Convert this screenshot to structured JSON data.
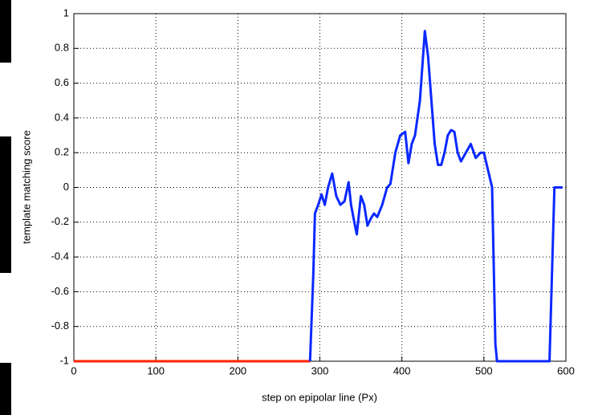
{
  "chart_data": {
    "type": "line",
    "xlabel": "step on epipolar line (Px)",
    "ylabel": "template matching score",
    "xlim": [
      0,
      600
    ],
    "xticks": [
      0,
      100,
      200,
      300,
      400,
      500,
      600
    ],
    "ylim": [
      -1,
      1
    ],
    "yticks": [
      -1,
      -0.8,
      -0.6,
      -0.4,
      -0.2,
      0,
      0.2,
      0.4,
      0.6,
      0.8,
      1
    ],
    "grid": true,
    "series": [
      {
        "color": "#ff2200",
        "x": [
          0,
          288
        ],
        "values": [
          -1,
          -1
        ]
      },
      {
        "color": "#0a28ff",
        "x": [
          288,
          292,
          294,
          298,
          302,
          306,
          310,
          315,
          320,
          325,
          330,
          335,
          338,
          342,
          345,
          350,
          354,
          358,
          362,
          366,
          370,
          376,
          382,
          386,
          392,
          398,
          404,
          408,
          412,
          416,
          422,
          428,
          432,
          436,
          440,
          444,
          448,
          452,
          456,
          460,
          464,
          468,
          472,
          478,
          484,
          490,
          496,
          500,
          505,
          510,
          514,
          516,
          580,
          583,
          586,
          596
        ],
        "values": [
          -1,
          -0.5,
          -0.15,
          -0.1,
          -0.04,
          -0.1,
          0,
          0.08,
          -0.05,
          -0.1,
          -0.08,
          0.03,
          -0.1,
          -0.2,
          -0.27,
          -0.05,
          -0.1,
          -0.22,
          -0.18,
          -0.15,
          -0.17,
          -0.1,
          0,
          0.02,
          0.2,
          0.3,
          0.32,
          0.14,
          0.25,
          0.3,
          0.5,
          0.9,
          0.75,
          0.5,
          0.25,
          0.13,
          0.13,
          0.2,
          0.3,
          0.33,
          0.32,
          0.2,
          0.15,
          0.2,
          0.25,
          0.17,
          0.2,
          0.2,
          0.1,
          0,
          -0.9,
          -1,
          -1,
          -0.5,
          0,
          0
        ]
      }
    ]
  }
}
